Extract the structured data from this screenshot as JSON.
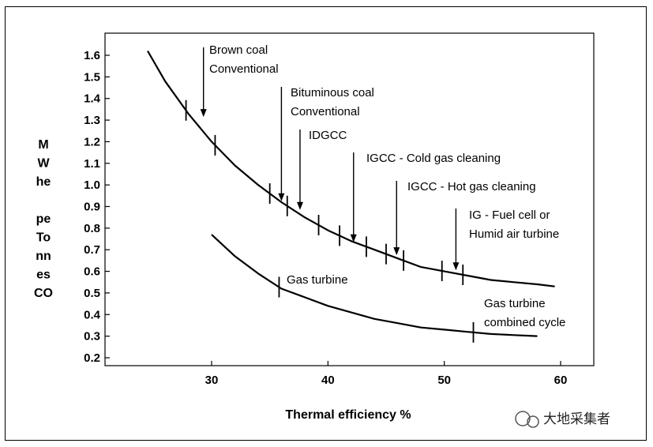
{
  "chart_data": {
    "type": "line",
    "xlabel": "Thermal efficiency %",
    "ylabel_lines": [
      "M",
      "W",
      "he",
      "",
      "pe",
      "To",
      "nn",
      "es",
      "CO"
    ],
    "xlim": [
      20,
      62
    ],
    "ylim": [
      0.2,
      1.65
    ],
    "x_ticks": [
      "30",
      "40",
      "50",
      "60"
    ],
    "x_tick_values": [
      30,
      40,
      50,
      60
    ],
    "y_ticks": [
      "1.6",
      "1.5",
      "1.4",
      "1.3",
      "1.2",
      "1.1",
      "1.0",
      "0.9",
      "0.8",
      "0.7",
      "0.6",
      "0.5",
      "0.4",
      "0.3",
      "0.2"
    ],
    "y_tick_values": [
      1.6,
      1.5,
      1.4,
      1.3,
      1.2,
      1.1,
      1.0,
      0.9,
      0.8,
      0.7,
      0.6,
      0.5,
      0.4,
      0.3,
      0.2
    ],
    "series": [
      {
        "x": [
          24.5,
          26,
          28,
          30,
          32,
          34,
          36,
          38,
          40,
          42,
          44,
          46,
          48,
          50,
          52,
          54,
          56,
          58,
          59.5
        ],
        "y": [
          1.62,
          1.48,
          1.33,
          1.2,
          1.09,
          1.0,
          0.92,
          0.85,
          0.79,
          0.74,
          0.7,
          0.66,
          0.62,
          0.6,
          0.58,
          0.56,
          0.55,
          0.54,
          0.53
        ],
        "markers_x": [
          27.8,
          30.3,
          35,
          36.5,
          39.2,
          41,
          43.3,
          45,
          46.5,
          49.8,
          51.6
        ]
      },
      {
        "x": [
          30,
          32,
          34,
          36,
          38,
          40,
          42,
          44,
          46,
          48,
          50,
          52,
          54,
          56,
          58
        ],
        "y": [
          0.77,
          0.67,
          0.59,
          0.52,
          0.48,
          0.44,
          0.41,
          0.38,
          0.36,
          0.34,
          0.33,
          0.32,
          0.31,
          0.305,
          0.3
        ],
        "markers_x": [
          35.8,
          52.5
        ]
      }
    ],
    "annotations": [
      {
        "lines": [
          "Brown coal",
          "Conventional"
        ],
        "arrow_x": 29.3,
        "arrow_y": 1.3
      },
      {
        "lines": [
          "Bituminous coal",
          "Conventional"
        ],
        "arrow_x": 36,
        "arrow_y": 0.91
      },
      {
        "lines": [
          "IDGCC"
        ],
        "arrow_x": 37.6,
        "arrow_y": 0.87
      },
      {
        "lines": [
          "IGCC - Cold gas cleaning"
        ],
        "arrow_x": 42.2,
        "arrow_y": 0.72
      },
      {
        "lines": [
          "IGCC - Hot gas cleaning"
        ],
        "arrow_x": 45.9,
        "arrow_y": 0.66
      },
      {
        "lines": [
          "IG - Fuel cell or",
          "Humid air turbine"
        ],
        "arrow_x": 51,
        "arrow_y": 0.59
      },
      {
        "lines": [
          "Gas turbine"
        ]
      },
      {
        "lines": [
          "Gas turbine",
          "combined cycle"
        ]
      }
    ]
  },
  "watermark": "大地采集者"
}
